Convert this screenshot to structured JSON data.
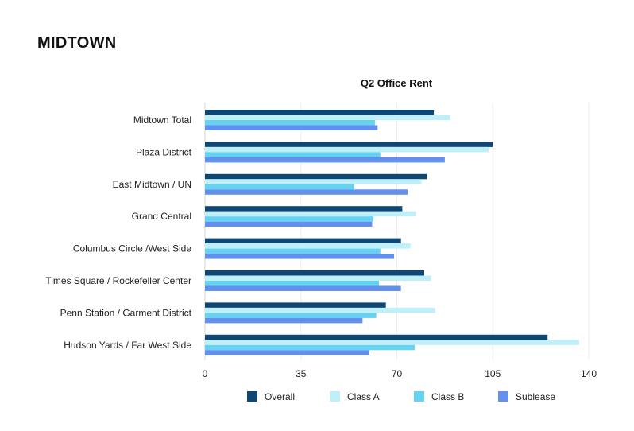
{
  "page": {
    "heading": "MIDTOWN"
  },
  "chart_data": {
    "type": "bar",
    "orientation": "horizontal",
    "title": "Q2 Office Rent",
    "xlabel": "",
    "ylabel": "",
    "xlim": [
      0,
      140
    ],
    "xticks": [
      0,
      35,
      70,
      105,
      140
    ],
    "grid": "vertical",
    "legend_position": "bottom",
    "categories": [
      "Midtown Total",
      "Plaza District",
      "East Midtown / UN",
      "Grand Central",
      "Columbus Circle /West Side",
      "Times Square / Rockefeller Center",
      "Penn Station / Garment District",
      "Hudson Yards / Far West Side"
    ],
    "series": [
      {
        "name": "Overall",
        "color": "#0e4774",
        "values": [
          83.5,
          105,
          81,
          72,
          71.5,
          80,
          66,
          125
        ]
      },
      {
        "name": "Class A",
        "color": "#bff0fa",
        "values": [
          89.5,
          103.5,
          79,
          77,
          75,
          82.5,
          84,
          136.5
        ]
      },
      {
        "name": "Class B",
        "color": "#65d2f2",
        "values": [
          62,
          64,
          54.5,
          61.5,
          64,
          63.5,
          62.5,
          76.5
        ]
      },
      {
        "name": "Sublease",
        "color": "#6390ec",
        "values": [
          63,
          87.5,
          74,
          61,
          69,
          71.5,
          57.5,
          60
        ]
      }
    ]
  }
}
